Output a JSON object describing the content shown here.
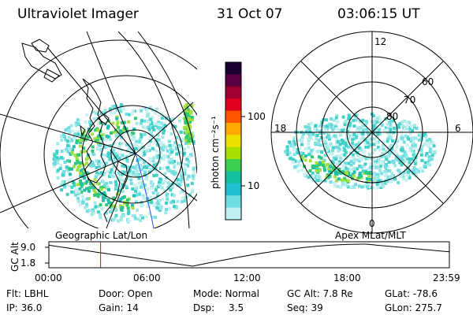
{
  "header": {
    "instrument": "Ultraviolet Imager",
    "date": "31 Oct 07",
    "time": "03:06:15 UT"
  },
  "colorbar": {
    "unit_label": "photon cm⁻²s⁻¹",
    "ticks": [
      "100",
      "10"
    ],
    "colors": [
      "#1a0030",
      "#5a0040",
      "#a00030",
      "#e00020",
      "#ff5500",
      "#ffaa00",
      "#eee000",
      "#a8e000",
      "#40d050",
      "#10c0a0",
      "#20c0d0",
      "#70dde0",
      "#c0f0f0"
    ]
  },
  "right_plot": {
    "mlt_labels": {
      "top": "12",
      "left": "18",
      "right": "6",
      "bottom": "0"
    },
    "lat_labels": [
      "60",
      "70",
      "80"
    ]
  },
  "timeline": {
    "left_caption": "Geographic Lat/Lon",
    "right_caption": "Apex MLat/MLT",
    "y_axis_label": "GC Alt",
    "y_ticks": [
      "9.0",
      "1.8"
    ],
    "x_ticks": [
      "00:00",
      "06:00",
      "12:00",
      "18:00",
      "23:59"
    ],
    "marker_time_hours": 3.1
  },
  "info": {
    "flt": "Flt: LBHL",
    "ip": "IP: 36.0",
    "door": "Door: Open",
    "gain": "Gain: 14",
    "mode": "Mode: Normal",
    "dsp_label": "Dsp:",
    "dsp_value": "3.5",
    "gcalt": "GC Alt: 7.8 Re",
    "seq": "Seq: 39",
    "glat": "GLat: -78.6",
    "glon": "GLon: 275.7"
  }
}
